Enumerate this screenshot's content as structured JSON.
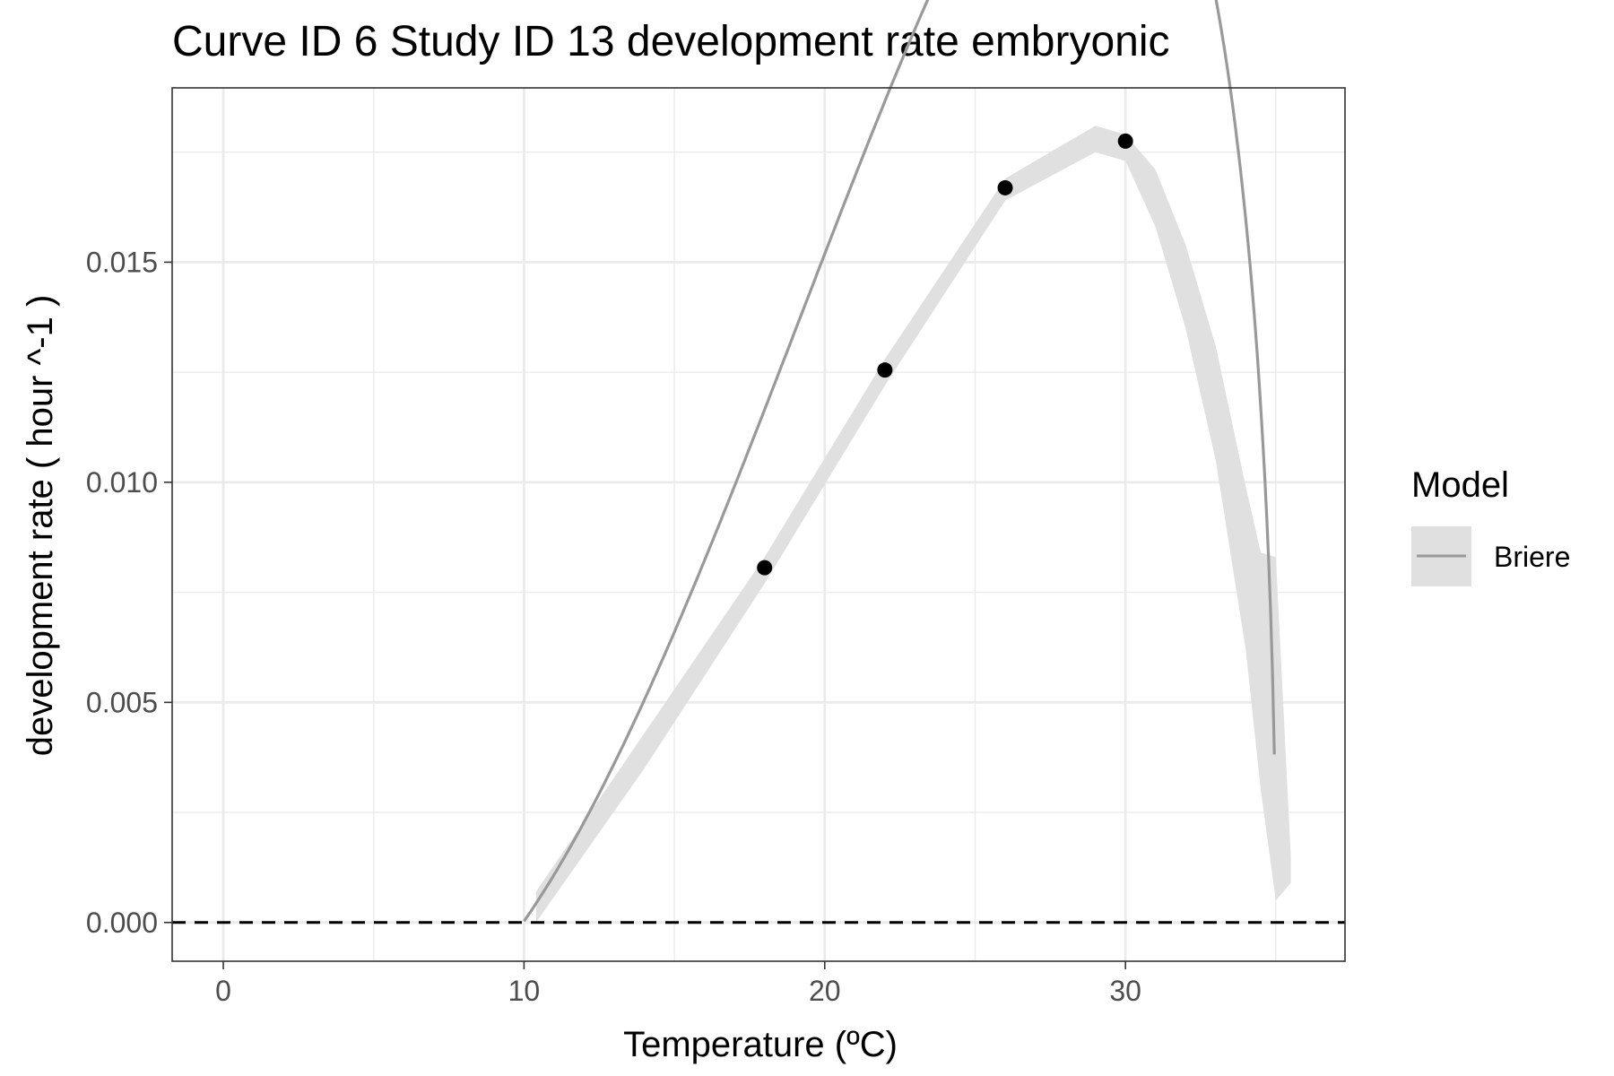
{
  "chart_data": {
    "type": "line",
    "title": "Curve ID 6 Study ID 13 development rate embryonic",
    "xlabel": "Temperature (ºC)",
    "ylabel": "development rate ( hour ^-1 )",
    "xlim": [
      -1.7,
      37.3
    ],
    "ylim": [
      -0.00088,
      0.01896
    ],
    "x_ticks": [
      0,
      10,
      20,
      30
    ],
    "x_tick_labels": [
      "0",
      "10",
      "20",
      "30"
    ],
    "y_ticks": [
      0,
      0.005,
      0.01,
      0.015
    ],
    "y_tick_labels": [
      "0.000",
      "0.005",
      "0.010",
      "0.015"
    ],
    "grid": true,
    "reference_line": {
      "y": 0,
      "style": "dashed"
    },
    "legend": {
      "title": "Model",
      "position": "right",
      "entries": [
        "Briere"
      ]
    },
    "points": {
      "x": [
        18,
        22,
        26,
        30
      ],
      "y": [
        0.00806,
        0.01255,
        0.01669,
        0.01775
      ]
    },
    "series": [
      {
        "name": "Briere",
        "model": {
          "a": 1.955e-05,
          "T0": 9.97,
          "TL": 35.0
        },
        "x_range": [
          10,
          34.95
        ],
        "band": {
          "x": [
            10.4,
            14,
            18,
            22,
            26,
            29,
            30,
            31,
            32,
            33,
            34,
            34.5,
            35.0,
            35.5
          ],
          "lower": [
            0.0,
            0.0035,
            0.0077,
            0.0122,
            0.0164,
            0.0175,
            0.0173,
            0.0158,
            0.0135,
            0.0105,
            0.0062,
            0.003,
            0.0005,
            0.0009
          ],
          "upper": [
            0.0007,
            0.0043,
            0.0083,
            0.0128,
            0.0169,
            0.0181,
            0.0179,
            0.0171,
            0.0154,
            0.0131,
            0.0099,
            0.0084,
            0.0083,
            0.0015
          ]
        }
      }
    ],
    "colors": {
      "line": "#999999",
      "band": "#e0e0e0",
      "points": "#000000",
      "grid": "#ebebeb",
      "frame": "#333333",
      "axis_text": "#4d4d4d"
    }
  }
}
